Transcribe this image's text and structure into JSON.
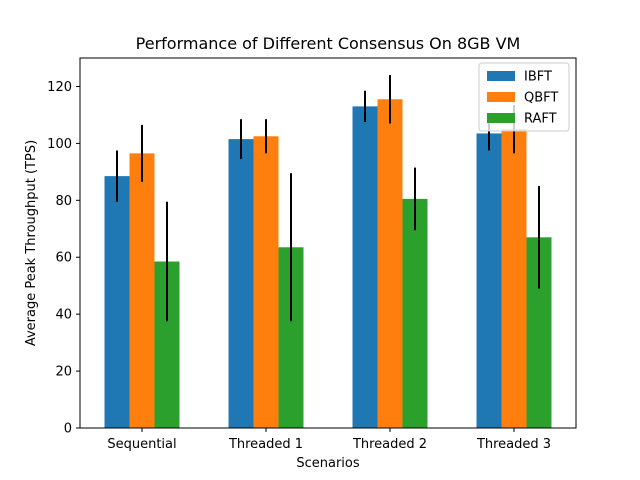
{
  "chart_data": {
    "type": "bar",
    "title": "Performance of Different Consensus On 8GB VM",
    "xlabel": "Scenarios",
    "ylabel": "Average Peak Throughput (TPS)",
    "categories": [
      "Sequential",
      "Threaded 1",
      "Threaded 2",
      "Threaded 3"
    ],
    "ylim": [
      0,
      130
    ],
    "yticks": [
      0,
      20,
      40,
      60,
      80,
      100,
      120
    ],
    "grid": false,
    "legend_position": "top-right",
    "series": [
      {
        "name": "IBFT",
        "color": "#1f77b4",
        "values": [
          88.5,
          101.5,
          113,
          103.5
        ],
        "errors": [
          9,
          7,
          5.5,
          6
        ]
      },
      {
        "name": "QBFT",
        "color": "#ff7f0e",
        "values": [
          96.5,
          102.5,
          115.5,
          105
        ],
        "errors": [
          10,
          6,
          8.5,
          8.5
        ]
      },
      {
        "name": "RAFT",
        "color": "#2ca02c",
        "values": [
          58.5,
          63.5,
          80.5,
          67
        ],
        "errors": [
          21,
          26,
          11,
          18
        ]
      }
    ]
  }
}
